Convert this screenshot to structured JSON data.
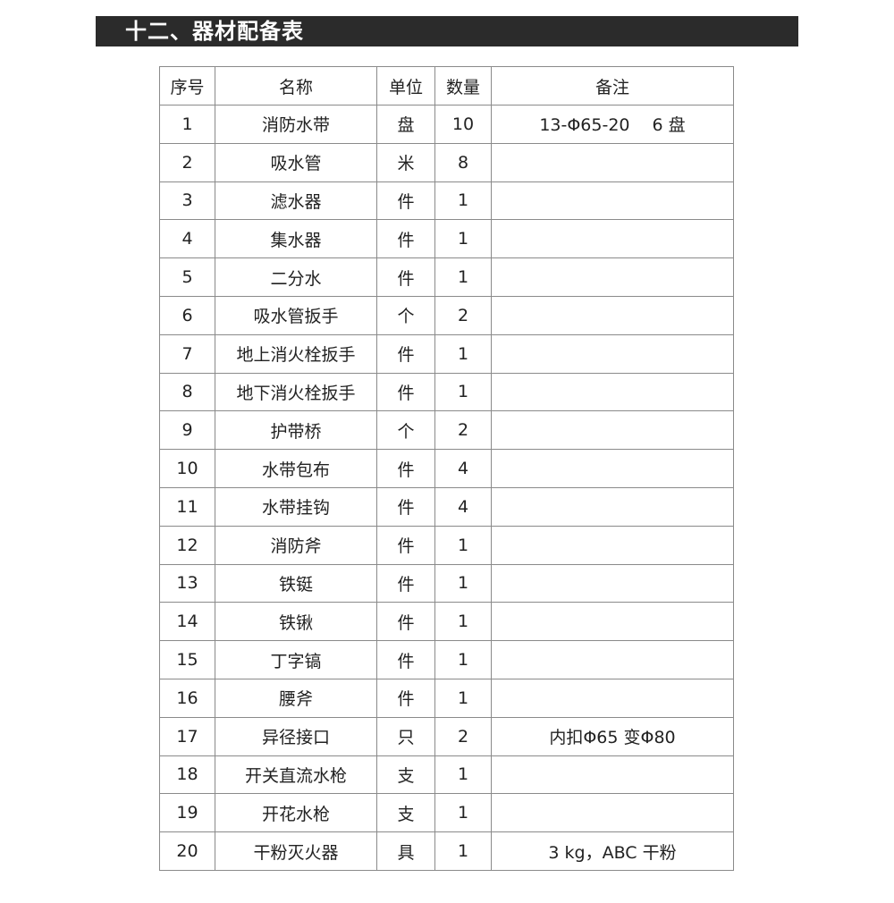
{
  "title": "十二、器材配备表",
  "table": {
    "headers": [
      "序号",
      "名称",
      "单位",
      "数量",
      "备注"
    ],
    "rows": [
      [
        "1",
        "消防水带",
        "盘",
        "10",
        "13-Φ65-20　 6 盘"
      ],
      [
        "2",
        "吸水管",
        "米",
        "8",
        ""
      ],
      [
        "3",
        "滤水器",
        "件",
        "1",
        ""
      ],
      [
        "4",
        "集水器",
        "件",
        "1",
        ""
      ],
      [
        "5",
        "二分水",
        "件",
        "1",
        ""
      ],
      [
        "6",
        "吸水管扳手",
        "个",
        "2",
        ""
      ],
      [
        "7",
        "地上消火栓扳手",
        "件",
        "1",
        ""
      ],
      [
        "8",
        "地下消火栓扳手",
        "件",
        "1",
        ""
      ],
      [
        "9",
        "护带桥",
        "个",
        "2",
        ""
      ],
      [
        "10",
        "水带包布",
        "件",
        "4",
        ""
      ],
      [
        "11",
        "水带挂钩",
        "件",
        "4",
        ""
      ],
      [
        "12",
        "消防斧",
        "件",
        "1",
        ""
      ],
      [
        "13",
        "铁铤",
        "件",
        "1",
        ""
      ],
      [
        "14",
        "铁锹",
        "件",
        "1",
        ""
      ],
      [
        "15",
        "丁字镐",
        "件",
        "1",
        ""
      ],
      [
        "16",
        "腰斧",
        "件",
        "1",
        ""
      ],
      [
        "17",
        "异径接口",
        "只",
        "2",
        "内扣Φ65 变Φ80"
      ],
      [
        "18",
        "开关直流水枪",
        "支",
        "1",
        ""
      ],
      [
        "19",
        "开花水枪",
        "支",
        "1",
        ""
      ],
      [
        "20",
        "干粉灭火器",
        "具",
        "1",
        "3 kg，ABC 干粉"
      ]
    ]
  }
}
